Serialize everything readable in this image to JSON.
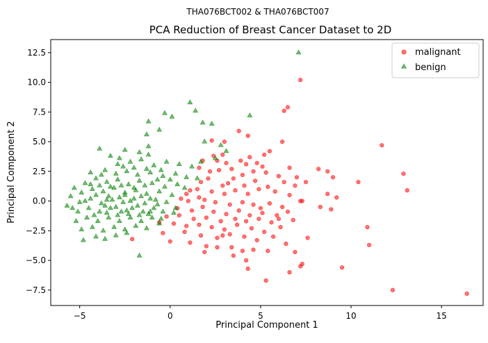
{
  "chart_data": {
    "type": "scatter",
    "suptitle": "THA076BCT002 & THA076BCT007",
    "title": "PCA Reduction of Breast Cancer Dataset to 2D",
    "xlabel": "Principal Component 1",
    "ylabel": "Principal Component 2",
    "xlim": [
      -6.6,
      17.3
    ],
    "ylim": [
      -8.8,
      13.6
    ],
    "xticks": [
      -5,
      0,
      5,
      10,
      15
    ],
    "yticks": [
      -7.5,
      -5.0,
      -2.5,
      0.0,
      2.5,
      5.0,
      7.5,
      10.0,
      12.5
    ],
    "xtick_labels": [
      "−5",
      "0",
      "5",
      "10",
      "15"
    ],
    "ytick_labels": [
      "−7.5",
      "−5.0",
      "−2.5",
      "0.0",
      "2.5",
      "5.0",
      "7.5",
      "10.0",
      "12.5"
    ],
    "legend": "top-right",
    "grid": false,
    "series": [
      {
        "name": "malignant",
        "marker": "circle",
        "color": "#ff0000",
        "points": [
          [
            7.2,
            10.2
          ],
          [
            6.5,
            7.9
          ],
          [
            6.3,
            7.6
          ],
          [
            3.0,
            5.0
          ],
          [
            3.8,
            5.9
          ],
          [
            2.3,
            5.1
          ],
          [
            4.3,
            5.5
          ],
          [
            6.2,
            5.0
          ],
          [
            5.5,
            4.2
          ],
          [
            5.2,
            3.9
          ],
          [
            2.4,
            3.8
          ],
          [
            2.9,
            3.9
          ],
          [
            4.4,
            3.7
          ],
          [
            1.8,
            3.4
          ],
          [
            2.6,
            3.4
          ],
          [
            3.1,
            3.2
          ],
          [
            3.9,
            3.4
          ],
          [
            4.2,
            3.1
          ],
          [
            4.8,
            3.2
          ],
          [
            5.1,
            2.9
          ],
          [
            1.6,
            2.8
          ],
          [
            2.2,
            2.5
          ],
          [
            2.7,
            2.6
          ],
          [
            3.4,
            2.7
          ],
          [
            4.0,
            2.2
          ],
          [
            4.6,
            2.5
          ],
          [
            5.3,
            2.4
          ],
          [
            6.0,
            2.1
          ],
          [
            6.6,
            2.8
          ],
          [
            7.0,
            2.0
          ],
          [
            1.7,
            1.6
          ],
          [
            2.1,
            1.9
          ],
          [
            2.9,
            1.3
          ],
          [
            3.5,
            1.9
          ],
          [
            4.1,
            1.3
          ],
          [
            4.7,
            1.7
          ],
          [
            5.4,
            1.2
          ],
          [
            6.3,
            1.6
          ],
          [
            6.9,
            1.3
          ],
          [
            7.5,
            1.6
          ],
          [
            1.1,
            0.9
          ],
          [
            1.5,
            1.0
          ],
          [
            2.3,
            0.8
          ],
          [
            3.0,
            0.6
          ],
          [
            3.6,
            0.9
          ],
          [
            4.3,
            0.6
          ],
          [
            4.9,
            1.0
          ],
          [
            5.8,
            0.8
          ],
          [
            6.6,
            0.5
          ],
          [
            7.2,
            0.0
          ],
          [
            8.2,
            2.7
          ],
          [
            8.7,
            2.5
          ],
          [
            9.0,
            2.0
          ],
          [
            10.4,
            1.6
          ],
          [
            11.7,
            4.7
          ],
          [
            12.9,
            2.3
          ],
          [
            13.1,
            0.9
          ],
          [
            8.7,
            0.6
          ],
          [
            9.2,
            0.3
          ],
          [
            8.3,
            -0.5
          ],
          [
            0.6,
            0.2
          ],
          [
            1.0,
            0.0
          ],
          [
            1.9,
            0.1
          ],
          [
            2.5,
            -0.1
          ],
          [
            3.3,
            -0.3
          ],
          [
            4.0,
            -0.1
          ],
          [
            4.6,
            -0.3
          ],
          [
            5.5,
            -0.2
          ],
          [
            6.2,
            -0.5
          ],
          [
            7.3,
            0.0
          ],
          [
            0.4,
            -0.6
          ],
          [
            1.2,
            -0.8
          ],
          [
            1.8,
            -0.5
          ],
          [
            2.4,
            -0.9
          ],
          [
            3.1,
            -1.1
          ],
          [
            3.8,
            -0.8
          ],
          [
            4.4,
            -1.2
          ],
          [
            5.1,
            -1.0
          ],
          [
            5.9,
            -1.2
          ],
          [
            6.5,
            -0.9
          ],
          [
            -0.2,
            -1.3
          ],
          [
            0.5,
            -1.2
          ],
          [
            1.3,
            -1.5
          ],
          [
            2.0,
            -1.4
          ],
          [
            2.8,
            -1.7
          ],
          [
            3.6,
            -1.5
          ],
          [
            4.2,
            -1.7
          ],
          [
            4.9,
            -1.5
          ],
          [
            5.6,
            -1.8
          ],
          [
            6.8,
            -1.6
          ],
          [
            -0.6,
            -1.8
          ],
          [
            0.2,
            -1.9
          ],
          [
            0.9,
            -2.1
          ],
          [
            1.6,
            -2.0
          ],
          [
            2.3,
            -2.2
          ],
          [
            3.0,
            -2.4
          ],
          [
            3.7,
            -2.0
          ],
          [
            4.5,
            -2.3
          ],
          [
            5.2,
            -2.6
          ],
          [
            6.1,
            -2.2
          ],
          [
            -0.4,
            -2.7
          ],
          [
            0.8,
            -2.6
          ],
          [
            1.7,
            -2.9
          ],
          [
            2.6,
            -3.1
          ],
          [
            3.3,
            -2.8
          ],
          [
            4.1,
            -3.0
          ],
          [
            4.8,
            -3.3
          ],
          [
            5.7,
            -3.0
          ],
          [
            6.4,
            -3.6
          ],
          [
            7.6,
            -3.1
          ],
          [
            -2.1,
            -3.2
          ],
          [
            0.0,
            -3.4
          ],
          [
            1.1,
            -3.5
          ],
          [
            2.0,
            -3.8
          ],
          [
            2.6,
            -3.9
          ],
          [
            3.4,
            -3.9
          ],
          [
            4.0,
            -4.2
          ],
          [
            4.6,
            -4.1
          ],
          [
            5.4,
            -4.2
          ],
          [
            6.9,
            -4.3
          ],
          [
            1.9,
            -4.3
          ],
          [
            3.5,
            -4.6
          ],
          [
            4.2,
            -5.0
          ],
          [
            4.3,
            -5.7
          ],
          [
            7.3,
            -5.3
          ],
          [
            7.2,
            -5.5
          ],
          [
            6.6,
            -6.0
          ],
          [
            5.3,
            -6.7
          ],
          [
            9.5,
            -5.6
          ],
          [
            12.3,
            -7.5
          ],
          [
            16.4,
            -7.8
          ],
          [
            10.9,
            -2.2
          ],
          [
            11.0,
            -3.7
          ],
          [
            0.9,
            0.6
          ],
          [
            1.6,
            0.3
          ],
          [
            2.9,
            -2.9
          ],
          [
            3.2,
            1.5
          ],
          [
            5.0,
            -0.6
          ],
          [
            6.0,
            -1.5
          ],
          [
            8.9,
            -0.7
          ]
        ]
      },
      {
        "name": "benign",
        "marker": "triangle",
        "color": "#008000",
        "points": [
          [
            7.1,
            12.5
          ],
          [
            1.1,
            8.3
          ],
          [
            1.4,
            7.6
          ],
          [
            -0.3,
            7.4
          ],
          [
            0.1,
            7.1
          ],
          [
            4.4,
            7.2
          ],
          [
            1.8,
            6.6
          ],
          [
            -1.2,
            6.7
          ],
          [
            2.3,
            6.5
          ],
          [
            -0.6,
            6.0
          ],
          [
            2.8,
            4.7
          ],
          [
            -1.3,
            5.6
          ],
          [
            1.9,
            5.0
          ],
          [
            -1.2,
            4.6
          ],
          [
            -3.9,
            4.4
          ],
          [
            -2.5,
            4.3
          ],
          [
            -1.7,
            4.1
          ],
          [
            -1.2,
            3.9
          ],
          [
            3.1,
            4.2
          ],
          [
            2.5,
            3.6
          ],
          [
            -3.3,
            3.8
          ],
          [
            -2.8,
            3.6
          ],
          [
            -2.2,
            3.3
          ],
          [
            -1.6,
            3.5
          ],
          [
            -0.9,
            3.0
          ],
          [
            -0.2,
            3.3
          ],
          [
            0.5,
            3.1
          ],
          [
            1.2,
            2.9
          ],
          [
            1.7,
            3.3
          ],
          [
            -2.6,
            2.9
          ],
          [
            -4.4,
            2.4
          ],
          [
            -3.6,
            2.6
          ],
          [
            -3.0,
            2.3
          ],
          [
            -2.4,
            2.5
          ],
          [
            -1.8,
            2.2
          ],
          [
            -1.1,
            2.4
          ],
          [
            -0.4,
            2.1
          ],
          [
            0.3,
            2.3
          ],
          [
            0.9,
            2.0
          ],
          [
            1.5,
            1.9
          ],
          [
            -5.3,
            1.1
          ],
          [
            -4.7,
            1.5
          ],
          [
            -4.1,
            1.9
          ],
          [
            -3.5,
            1.6
          ],
          [
            -2.9,
            1.8
          ],
          [
            -2.3,
            1.4
          ],
          [
            -1.7,
            1.7
          ],
          [
            -1.0,
            1.5
          ],
          [
            -0.3,
            1.2
          ],
          [
            0.4,
            1.4
          ],
          [
            -5.5,
            0.4
          ],
          [
            -4.9,
            0.7
          ],
          [
            -4.3,
            1.0
          ],
          [
            -3.7,
            0.8
          ],
          [
            -3.1,
            1.1
          ],
          [
            -2.5,
            0.7
          ],
          [
            -1.9,
            0.9
          ],
          [
            -1.3,
            0.6
          ],
          [
            -0.6,
            0.8
          ],
          [
            0.1,
            0.5
          ],
          [
            -5.7,
            -0.4
          ],
          [
            -5.0,
            -0.1
          ],
          [
            -4.4,
            0.2
          ],
          [
            -3.8,
            -0.2
          ],
          [
            -3.2,
            0.1
          ],
          [
            -2.6,
            -0.1
          ],
          [
            -2.0,
            0.2
          ],
          [
            -1.4,
            -0.2
          ],
          [
            -0.8,
            0.1
          ],
          [
            -0.2,
            -0.1
          ],
          [
            -5.1,
            -0.9
          ],
          [
            -4.5,
            -0.6
          ],
          [
            -3.9,
            -0.9
          ],
          [
            -3.3,
            -0.6
          ],
          [
            -2.7,
            -0.9
          ],
          [
            -2.1,
            -0.6
          ],
          [
            -1.5,
            -0.9
          ],
          [
            -0.9,
            -0.6
          ],
          [
            -0.4,
            -0.9
          ],
          [
            0.3,
            -0.6
          ],
          [
            -5.2,
            -1.7
          ],
          [
            -4.6,
            -1.4
          ],
          [
            -4.0,
            -1.7
          ],
          [
            -3.4,
            -1.4
          ],
          [
            -2.8,
            -1.7
          ],
          [
            -2.2,
            -1.4
          ],
          [
            -1.6,
            -1.7
          ],
          [
            -1.0,
            -1.4
          ],
          [
            -0.5,
            -1.5
          ],
          [
            0.2,
            -1.0
          ],
          [
            -4.9,
            -2.4
          ],
          [
            -4.3,
            -2.2
          ],
          [
            -3.7,
            -2.5
          ],
          [
            -3.1,
            -2.2
          ],
          [
            -2.5,
            -2.4
          ],
          [
            -1.9,
            -2.1
          ],
          [
            -1.3,
            -2.3
          ],
          [
            -4.8,
            -3.3
          ],
          [
            -4.1,
            -3.0
          ],
          [
            -3.6,
            -3.2
          ],
          [
            -3.0,
            -2.9
          ],
          [
            -2.4,
            -2.7
          ],
          [
            -1.7,
            -4.6
          ],
          [
            -3.4,
            0.4
          ],
          [
            -2.8,
            0.3
          ],
          [
            -2.2,
            0.0
          ],
          [
            -1.6,
            0.4
          ],
          [
            -1.1,
            0.2
          ],
          [
            -4.1,
            0.5
          ],
          [
            -3.6,
            -0.4
          ],
          [
            -3.0,
            -0.5
          ],
          [
            -2.4,
            -0.8
          ],
          [
            -1.8,
            -0.4
          ],
          [
            -1.2,
            -1.1
          ],
          [
            -0.7,
            -0.3
          ],
          [
            -4.7,
            0.0
          ],
          [
            -4.2,
            -1.2
          ],
          [
            -3.5,
            -1.0
          ],
          [
            -2.9,
            -1.2
          ],
          [
            -2.3,
            -1.1
          ],
          [
            -1.7,
            -1.2
          ],
          [
            -1.1,
            -0.9
          ],
          [
            -0.6,
            -1.9
          ],
          [
            -2.0,
            1.1
          ],
          [
            -2.7,
            1.3
          ],
          [
            -3.3,
            1.2
          ],
          [
            -3.9,
            1.3
          ],
          [
            -1.4,
            1.3
          ],
          [
            -0.7,
            1.8
          ],
          [
            0.0,
            1.8
          ],
          [
            -2.0,
            2.8
          ],
          [
            -2.9,
            3.1
          ],
          [
            -3.8,
            2.2
          ],
          [
            -4.4,
            1.4
          ],
          [
            -1.3,
            2.7
          ],
          [
            -0.5,
            2.6
          ],
          [
            0.8,
            1.1
          ],
          [
            -5.4,
            -0.6
          ],
          [
            -3.5,
            0.1
          ],
          [
            -2.5,
            0.5
          ]
        ]
      }
    ]
  }
}
